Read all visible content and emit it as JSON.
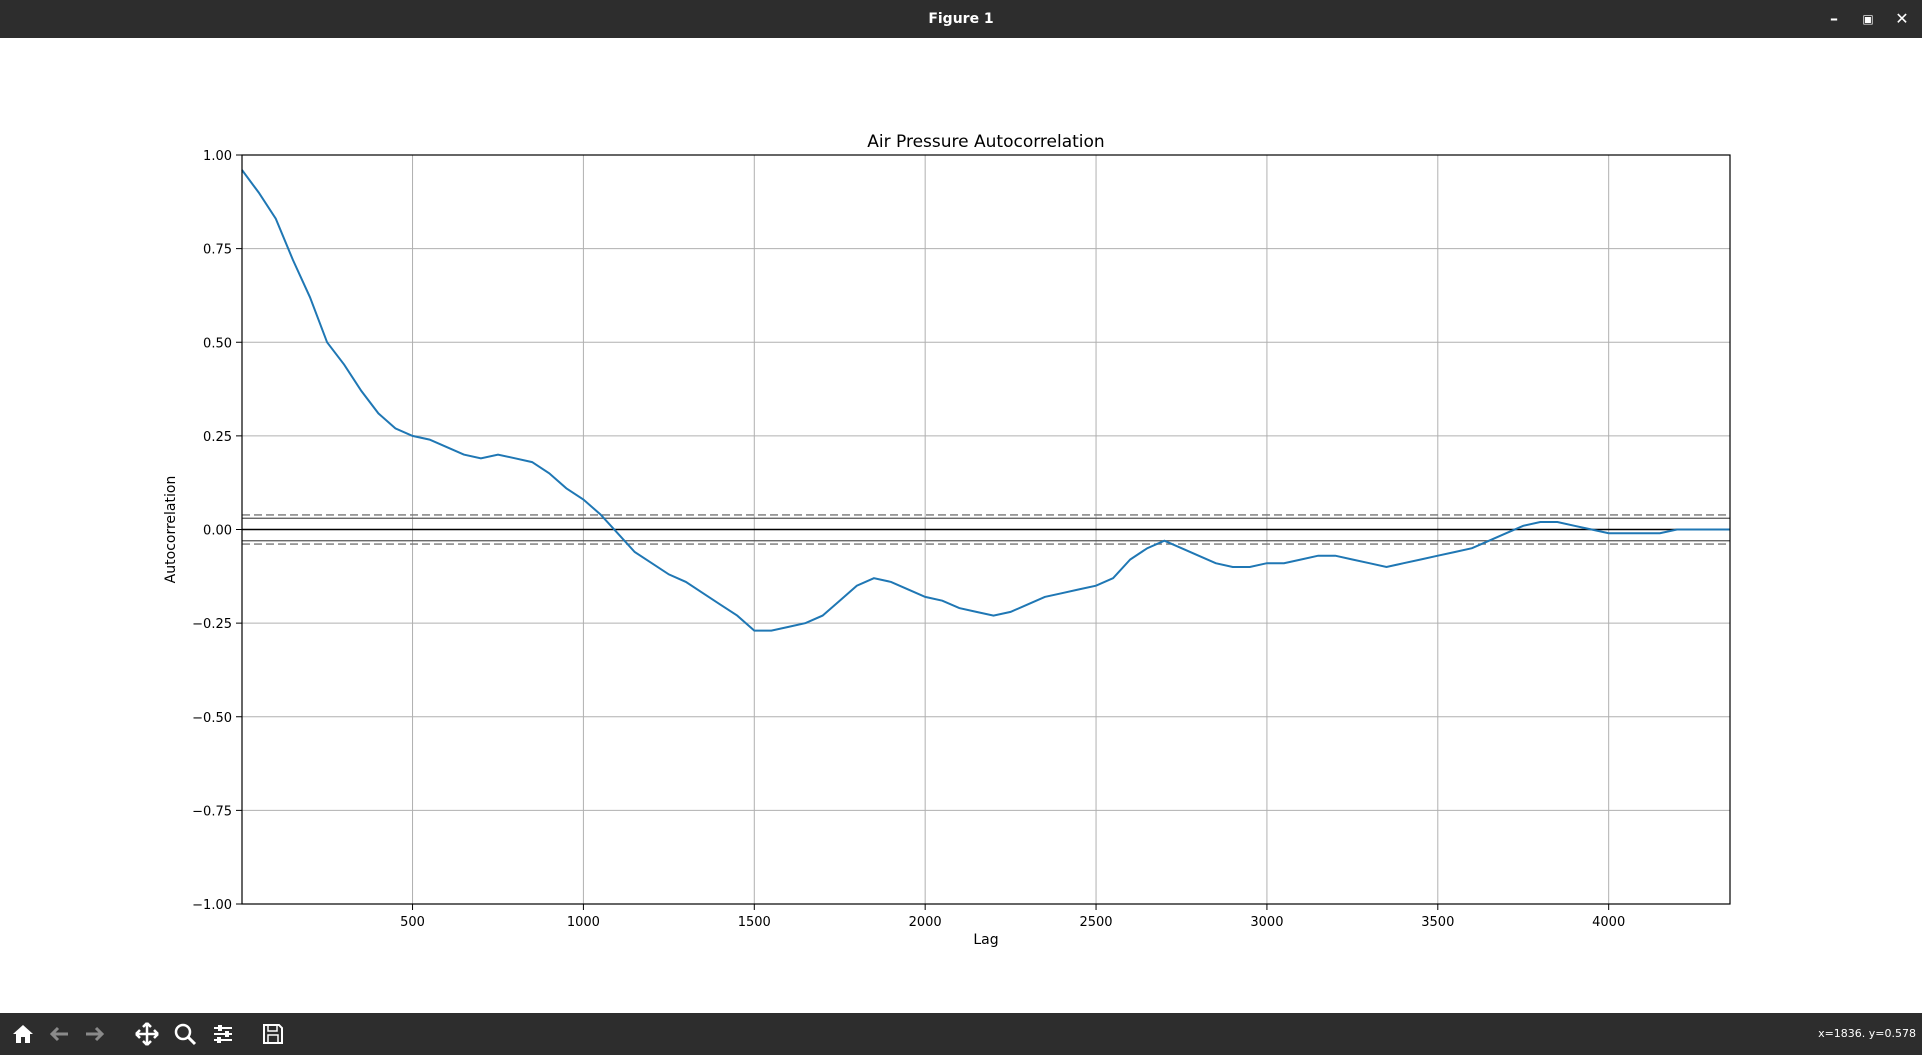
{
  "window": {
    "title": "Figure 1"
  },
  "toolbar": {
    "coords": "x=1836. y=0.578",
    "buttons": [
      "home-icon",
      "back-arrow-icon",
      "forward-arrow-icon",
      "pan-icon",
      "zoom-icon",
      "sliders-icon",
      "save-icon"
    ]
  },
  "colors": {
    "line": "#1f77b4",
    "grid": "#b0b0b0",
    "titlebar": "#2d2d2d"
  },
  "chart_data": {
    "type": "line",
    "title": "Air Pressure Autocorrelation",
    "xlabel": "Lag",
    "ylabel": "Autocorrelation",
    "xlim": [
      1,
      4355
    ],
    "ylim": [
      -1.0,
      1.0
    ],
    "grid": true,
    "xticks": [
      500,
      1000,
      1500,
      2000,
      2500,
      3000,
      3500,
      4000
    ],
    "yticks": [
      1.0,
      0.75,
      0.5,
      0.25,
      0.0,
      -0.25,
      -0.5,
      -0.75,
      -1.0
    ],
    "ytick_labels": [
      "1.00",
      "0.75",
      "0.50",
      "0.25",
      "0.00",
      "−0.25",
      "−0.50",
      "−0.75",
      "−1.00"
    ],
    "xtick_labels": [
      "500",
      "1000",
      "1500",
      "2000",
      "2500",
      "3000",
      "3500",
      "4000"
    ],
    "confidence_lines": {
      "solid": [
        0.0
      ],
      "dashed_99": [
        0.039,
        -0.039
      ],
      "solid_95": [
        0.03,
        -0.03
      ]
    },
    "series": [
      {
        "x": [
          1,
          50,
          100,
          150,
          200,
          250,
          300,
          350,
          400,
          450,
          500,
          550,
          600,
          650,
          700,
          750,
          800,
          850,
          900,
          950,
          1000,
          1050,
          1100,
          1150,
          1200,
          1250,
          1300,
          1350,
          1400,
          1450,
          1500,
          1550,
          1600,
          1650,
          1700,
          1750,
          1800,
          1850,
          1900,
          1950,
          2000,
          2050,
          2100,
          2150,
          2200,
          2250,
          2300,
          2350,
          2400,
          2450,
          2500,
          2550,
          2600,
          2650,
          2700,
          2750,
          2800,
          2850,
          2900,
          2950,
          3000,
          3050,
          3100,
          3150,
          3200,
          3250,
          3300,
          3350,
          3400,
          3450,
          3500,
          3550,
          3600,
          3650,
          3700,
          3750,
          3800,
          3850,
          3900,
          3950,
          4000,
          4050,
          4100,
          4150,
          4200,
          4250,
          4300,
          4355
        ],
        "y": [
          0.96,
          0.9,
          0.83,
          0.72,
          0.62,
          0.5,
          0.44,
          0.37,
          0.31,
          0.27,
          0.25,
          0.24,
          0.22,
          0.2,
          0.19,
          0.2,
          0.19,
          0.18,
          0.15,
          0.11,
          0.08,
          0.04,
          -0.01,
          -0.06,
          -0.09,
          -0.12,
          -0.14,
          -0.17,
          -0.2,
          -0.23,
          -0.27,
          -0.27,
          -0.26,
          -0.25,
          -0.23,
          -0.19,
          -0.15,
          -0.13,
          -0.14,
          -0.16,
          -0.18,
          -0.19,
          -0.21,
          -0.22,
          -0.23,
          -0.22,
          -0.2,
          -0.18,
          -0.17,
          -0.16,
          -0.15,
          -0.13,
          -0.08,
          -0.05,
          -0.03,
          -0.05,
          -0.07,
          -0.09,
          -0.1,
          -0.1,
          -0.09,
          -0.09,
          -0.08,
          -0.07,
          -0.07,
          -0.08,
          -0.09,
          -0.1,
          -0.09,
          -0.08,
          -0.07,
          -0.06,
          -0.05,
          -0.03,
          -0.01,
          0.01,
          0.02,
          0.02,
          0.01,
          0.0,
          -0.01,
          -0.01,
          -0.01,
          -0.01,
          0.0,
          0.0,
          0.0,
          0.0
        ]
      }
    ]
  }
}
